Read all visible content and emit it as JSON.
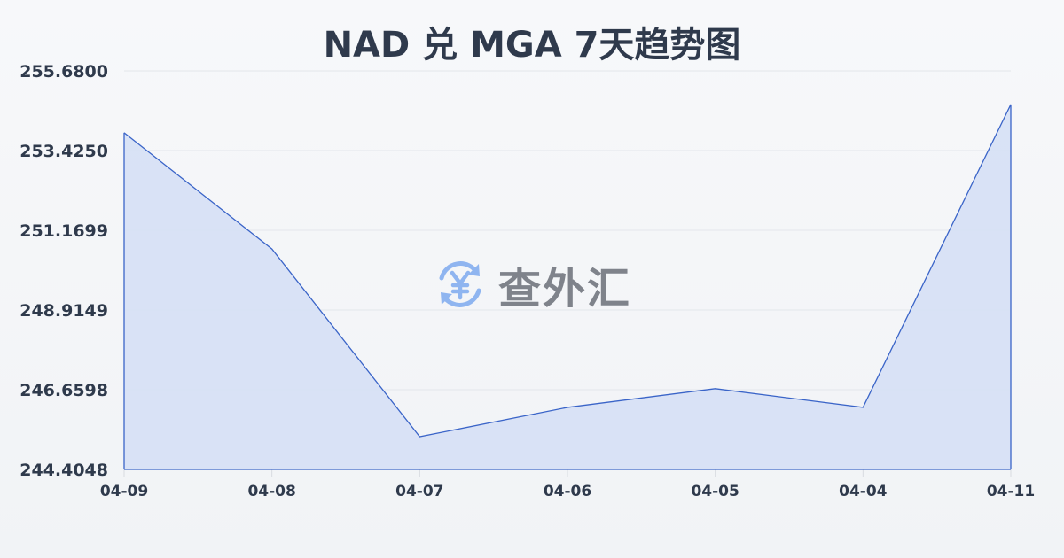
{
  "chart_data": {
    "type": "area",
    "title": "NAD 兑 MGA 7天趋势图",
    "categories": [
      "04-09",
      "04-08",
      "04-07",
      "04-06",
      "04-05",
      "04-04",
      "04-11"
    ],
    "values": [
      253.93,
      250.64,
      245.33,
      246.16,
      246.69,
      246.16,
      254.73
    ],
    "yticks": [
      "244.4048",
      "246.6598",
      "248.9149",
      "251.1699",
      "253.4250",
      "255.6800"
    ],
    "ylim": [
      244.4048,
      255.68
    ],
    "xlabel": "",
    "ylabel": "",
    "grid": true,
    "colors": {
      "line": "#3a64c8",
      "fill": "#d6e0f5"
    }
  },
  "watermark": {
    "text": "查外汇",
    "icon": "yen-exchange-icon",
    "icon_color": "#8fb5f0"
  }
}
